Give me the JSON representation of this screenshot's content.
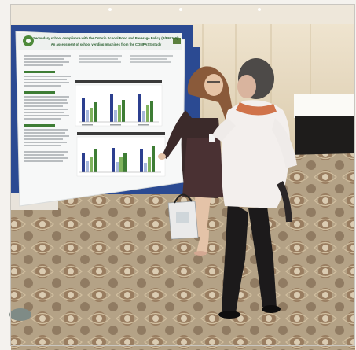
{
  "poster": {
    "title_line_1": "Secondary school compliance with the Ontario School Food and Beverage Policy (P/PM 150):",
    "title_line_2": "An assessment of school vending machines from the COMPASS study"
  },
  "colors": {
    "carpet": "#b9a98f",
    "wall": "#e7dcc4",
    "poster_board": "#2b4a92",
    "bar_navy": "#2c3f8f",
    "bar_green": "#7fb35d"
  }
}
